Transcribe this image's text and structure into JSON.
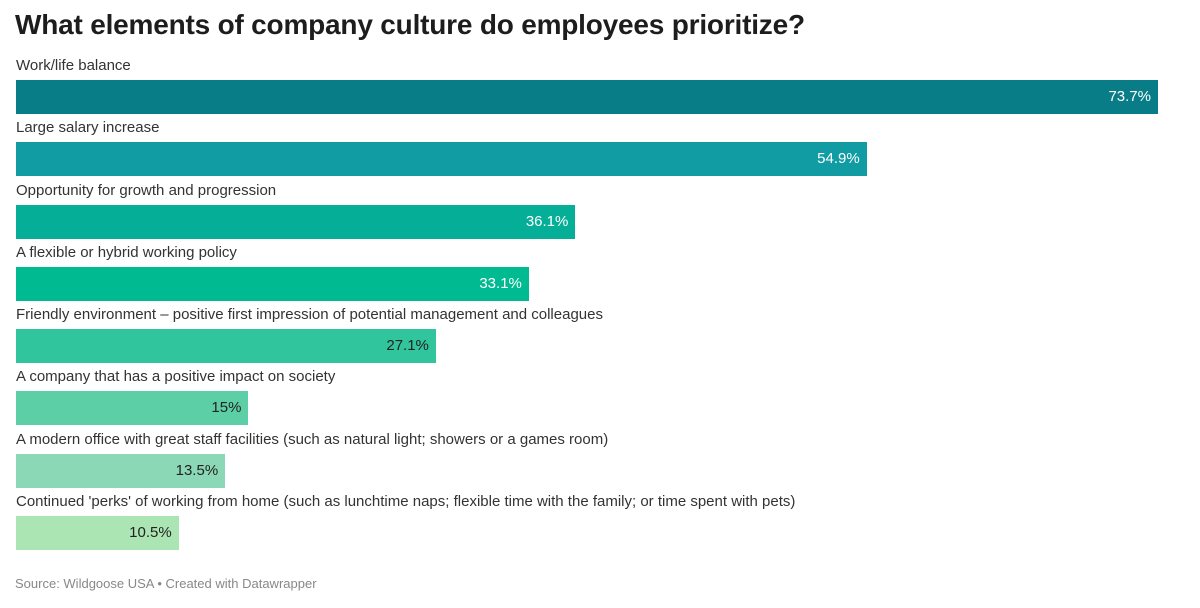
{
  "header": {
    "title": "What elements of company culture do employees prioritize?"
  },
  "footer": {
    "source": "Source: Wildgoose USA • Created with Datawrapper"
  },
  "chart_data": {
    "type": "bar",
    "orientation": "horizontal",
    "title": "What elements of company culture do employees prioritize?",
    "xlabel": "",
    "ylabel": "",
    "xlim": [
      0,
      73.7
    ],
    "grid": false,
    "legend": "none",
    "value_suffix": "%",
    "categories": [
      "Work/life balance",
      "Large salary increase",
      "Opportunity for growth and progression",
      "A flexible or hybrid working policy",
      "Friendly environment – positive first impression of potential management and colleagues",
      "A company that has a positive impact on society",
      "A modern office with great staff facilities (such as natural light; showers or a games room)",
      "Continued 'perks' of working from home (such as lunchtime naps; flexible time with the family; or time spent with pets)"
    ],
    "values": [
      73.7,
      54.9,
      36.1,
      33.1,
      27.1,
      15,
      13.5,
      10.5
    ],
    "value_labels": [
      "73.7%",
      "54.9%",
      "36.1%",
      "33.1%",
      "27.1%",
      "15%",
      "13.5%",
      "10.5%"
    ],
    "colors": [
      "#087d87",
      "#119ca3",
      "#05af97",
      "#00bb91",
      "#31c59e",
      "#5ccfa6",
      "#8bd8b6",
      "#abe5b4"
    ],
    "label_colors": [
      "#ffffff",
      "#ffffff",
      "#ffffff",
      "#ffffff",
      "#222222",
      "#222222",
      "#222222",
      "#222222"
    ]
  }
}
